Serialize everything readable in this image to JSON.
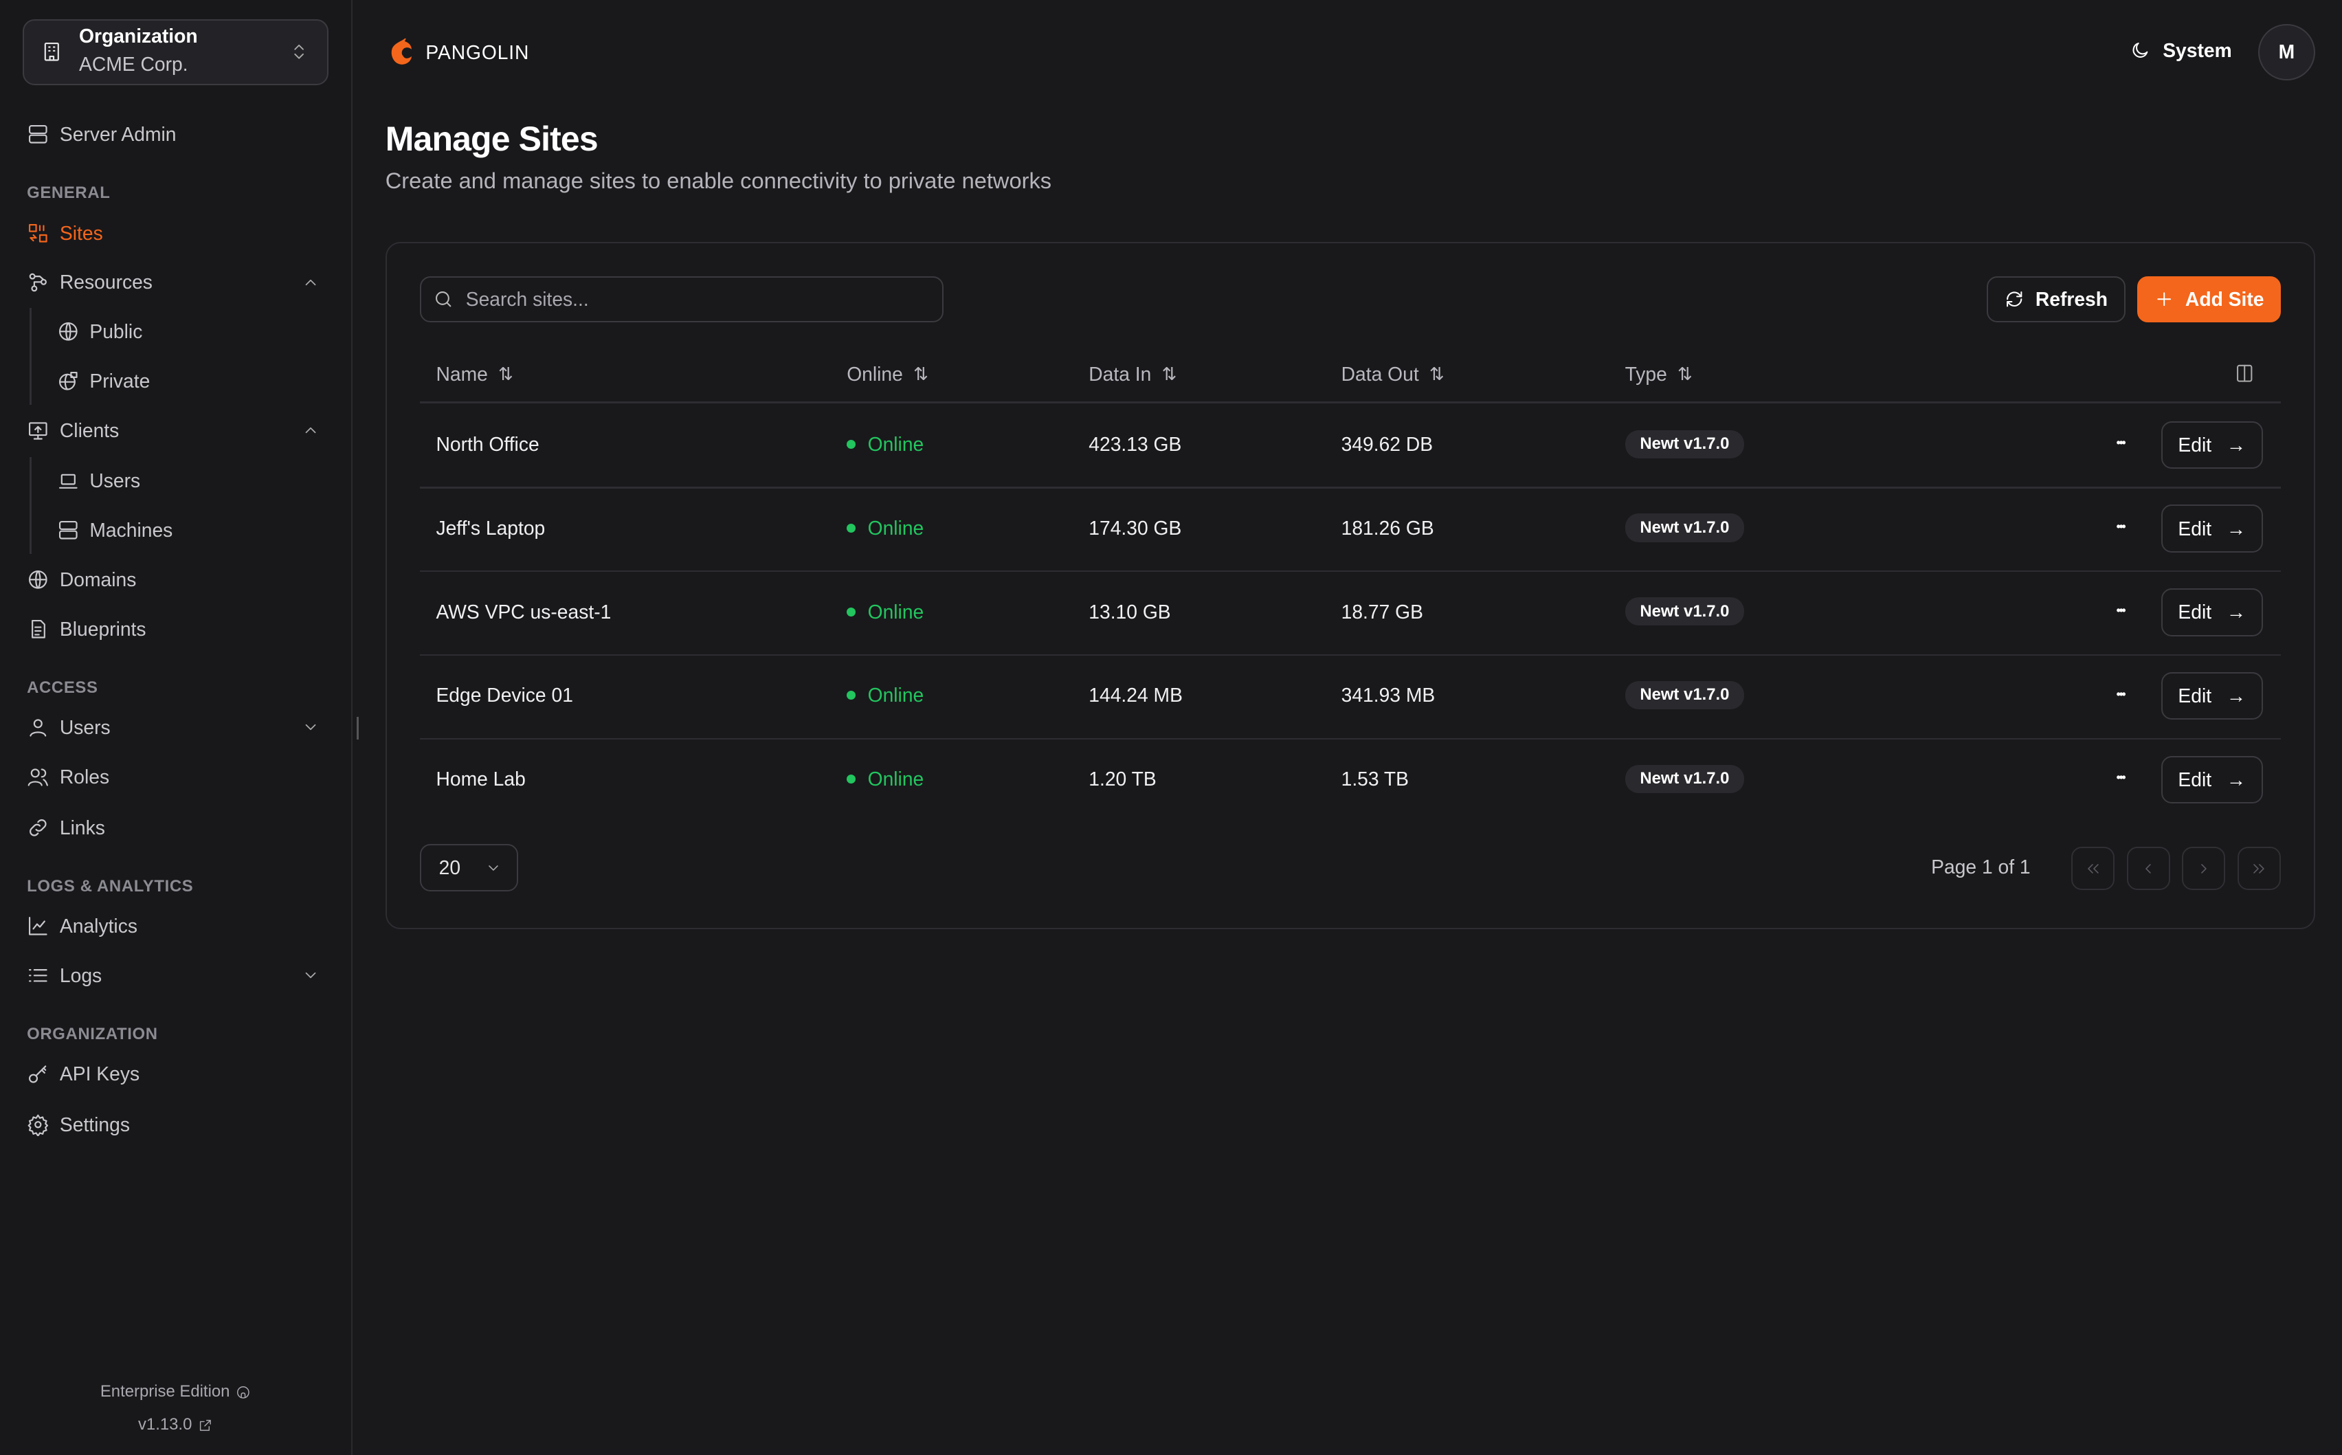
{
  "org": {
    "label": "Organization",
    "name": "ACME Corp."
  },
  "sidebar": {
    "server_admin": "Server Admin",
    "sections": [
      {
        "label": "GENERAL",
        "items": [
          {
            "label": "Sites",
            "icon": "sites-icon",
            "active": true
          },
          {
            "label": "Resources",
            "icon": "resources-icon",
            "chevron": "up",
            "children": [
              {
                "label": "Public",
                "icon": "globe-icon"
              },
              {
                "label": "Private",
                "icon": "globe-lock-icon"
              }
            ]
          },
          {
            "label": "Clients",
            "icon": "monitor-icon",
            "chevron": "up",
            "children": [
              {
                "label": "Users",
                "icon": "laptop-icon"
              },
              {
                "label": "Machines",
                "icon": "server-icon"
              }
            ]
          },
          {
            "label": "Domains",
            "icon": "globe-icon"
          },
          {
            "label": "Blueprints",
            "icon": "file-icon"
          }
        ]
      },
      {
        "label": "ACCESS",
        "items": [
          {
            "label": "Users",
            "icon": "user-icon",
            "chevron": "down"
          },
          {
            "label": "Roles",
            "icon": "users-icon"
          },
          {
            "label": "Links",
            "icon": "link-icon"
          }
        ]
      },
      {
        "label": "LOGS & ANALYTICS",
        "items": [
          {
            "label": "Analytics",
            "icon": "chart-icon"
          },
          {
            "label": "Logs",
            "icon": "list-icon",
            "chevron": "down"
          }
        ]
      },
      {
        "label": "ORGANIZATION",
        "items": [
          {
            "label": "API Keys",
            "icon": "key-icon"
          },
          {
            "label": "Settings",
            "icon": "gear-icon"
          }
        ]
      }
    ],
    "footer": {
      "edition": "Enterprise Edition",
      "version": "v1.13.0"
    }
  },
  "header": {
    "brand": "PANGOLIN",
    "theme": "System",
    "avatar": "M"
  },
  "page": {
    "title": "Manage Sites",
    "subtitle": "Create and manage sites to enable connectivity to private networks"
  },
  "toolbar": {
    "search_placeholder": "Search sites...",
    "refresh": "Refresh",
    "add": "Add Site"
  },
  "table": {
    "columns": [
      "Name",
      "Online",
      "Data In",
      "Data Out",
      "Type"
    ],
    "rows": [
      {
        "name": "North Office",
        "online": "Online",
        "data_in": "423.13 GB",
        "data_out": "349.62 DB",
        "type": "Newt v1.7.0"
      },
      {
        "name": "Jeff's Laptop",
        "online": "Online",
        "data_in": "174.30 GB",
        "data_out": "181.26 GB",
        "type": "Newt v1.7.0"
      },
      {
        "name": "AWS VPC us-east-1",
        "online": "Online",
        "data_in": "13.10 GB",
        "data_out": "18.77 GB",
        "type": "Newt v1.7.0"
      },
      {
        "name": "Edge Device 01",
        "online": "Online",
        "data_in": "144.24 MB",
        "data_out": "341.93 MB",
        "type": "Newt v1.7.0"
      },
      {
        "name": "Home Lab",
        "online": "Online",
        "data_in": "1.20 TB",
        "data_out": "1.53 TB",
        "type": "Newt v1.7.0"
      }
    ],
    "edit_label": "Edit"
  },
  "pagination": {
    "page_size": "20",
    "page_text": "Page 1 of 1"
  },
  "colors": {
    "accent": "#f4661b",
    "online": "#22c55e",
    "background": "#19191c"
  }
}
